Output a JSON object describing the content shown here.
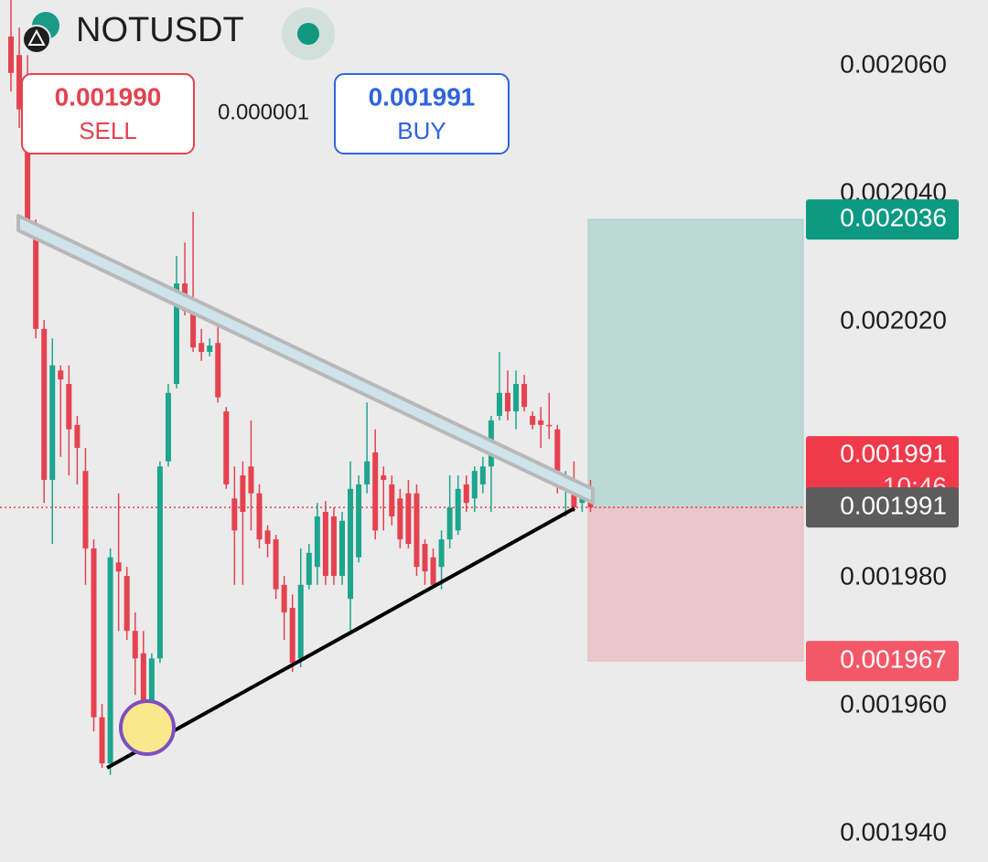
{
  "chart_data": {
    "type": "candlestick",
    "title": "NOTUSDT",
    "trade_panel": {
      "sell_price": "0.001990",
      "sell_label": "SELL",
      "spread": "0.000001",
      "buy_price": "0.001991",
      "buy_label": "BUY"
    },
    "ylim": [
      0.0019363,
      0.0020703
    ],
    "yticks": [
      {
        "value": 0.00194,
        "label": "0.001940"
      },
      {
        "value": 0.00196,
        "label": "0.001960"
      },
      {
        "value": 0.00198,
        "label": "0.001980"
      },
      {
        "value": 0.00202,
        "label": "0.002020"
      },
      {
        "value": 0.00204,
        "label": "0.002040"
      },
      {
        "value": 0.00206,
        "label": "0.002060"
      }
    ],
    "up_color": "#1ea58e",
    "down_color": "#e5424f",
    "candles": {
      "open": [
        0.0020646,
        0.0020617,
        0.0020574,
        0.0020346,
        0.0020189,
        0.0019953,
        0.0020124,
        0.0020103,
        0.0020039,
        0.0019967,
        0.0019846,
        0.0019582,
        0.001951,
        0.0019824,
        0.0019803,
        0.0019717,
        0.0019682,
        0.0019589,
        0.0019674,
        0.0019982,
        0.0020103,
        0.002026,
        0.0020232,
        0.0020167,
        0.0020153,
        0.0020167,
        0.002006,
        0.0019924,
        0.001996,
        0.0019974,
        0.0019932,
        0.0019874,
        0.001986,
        0.0019789,
        0.0019753,
        0.0019674,
        0.0019789,
        0.0019817,
        0.0019903,
        0.0019896,
        0.0019803,
        0.0019767,
        0.0019832,
        0.0019946,
        0.0019996,
        0.001996,
        0.0019946,
        0.0019924,
        0.0019932,
        0.0019932,
        0.0019853,
        0.0019832,
        0.0019817,
        0.001986,
        0.0019874,
        0.0019946,
        0.0019924,
        0.0019946,
        0.0019974,
        0.0020053,
        0.0020089,
        0.002006,
        0.0020103,
        0.0020053,
        0.0020046,
        0.0020039,
        0.0020032,
        0.0019946,
        0.0019946,
        0.0019917,
        0.0019932
      ],
      "high": [
        0.0020703,
        0.002066,
        0.0020617,
        0.002036,
        0.0020203,
        0.0020174,
        0.0020132,
        0.0020132,
        0.0020053,
        0.0020003,
        0.001986,
        0.0019603,
        0.0019846,
        0.0019932,
        0.0019817,
        0.0019746,
        0.0019717,
        0.0019682,
        0.0019982,
        0.0020103,
        0.0020303,
        0.0020324,
        0.0020372,
        0.0020189,
        0.0020174,
        0.0020217,
        0.0020067,
        0.0019974,
        0.0019982,
        0.0020046,
        0.0019946,
        0.0019882,
        0.0019867,
        0.0019803,
        0.0019774,
        0.0019846,
        0.0019853,
        0.0019917,
        0.001992,
        0.001991,
        0.0019903,
        0.0019982,
        0.001996,
        0.0020074,
        0.0020032,
        0.0019974,
        0.001996,
        0.0019939,
        0.0019953,
        0.0019946,
        0.001986,
        0.0019846,
        0.0019874,
        0.001996,
        0.001996,
        0.001996,
        0.0019974,
        0.0019989,
        0.0020053,
        0.0020153,
        0.0020124,
        0.0020124,
        0.0020117,
        0.002006,
        0.0020067,
        0.0020089,
        0.0020039,
        0.0019967,
        0.0019982,
        0.0019932,
        0.0019953
      ],
      "low": [
        0.002056,
        0.0020503,
        0.0020346,
        0.0020174,
        0.0019917,
        0.0019853,
        0.0019989,
        0.001996,
        0.0019946,
        0.0019789,
        0.001956,
        0.0019503,
        0.0019492,
        0.0019717,
        0.0019703,
        0.0019617,
        0.001956,
        0.0019582,
        0.0019667,
        0.0019974,
        0.0020096,
        0.002021,
        0.0020153,
        0.0020139,
        0.0020146,
        0.0020074,
        0.0019939,
        0.0019789,
        0.0019789,
        0.0019874,
        0.0019846,
        0.0019832,
        0.0019767,
        0.0019703,
        0.0019653,
        0.001966,
        0.0019782,
        0.0019789,
        0.0019789,
        0.0019789,
        0.0019789,
        0.0019717,
        0.0019824,
        0.0019932,
        0.001986,
        0.0019874,
        0.0019882,
        0.0019846,
        0.0019846,
        0.0019803,
        0.0019789,
        0.0019786,
        0.0019782,
        0.0019846,
        0.0019867,
        0.0019903,
        0.0019903,
        0.0019932,
        0.0019903,
        0.0020046,
        0.0020046,
        0.0020032,
        0.002006,
        0.0020032,
        0.0020003,
        0.0020017,
        0.0019932,
        0.0019896,
        0.0019903,
        0.0019903,
        0.0019903
      ],
      "close": [
        0.0020589,
        0.0020532,
        0.002036,
        0.0020189,
        0.0019953,
        0.0020132,
        0.002011,
        0.0020032,
        0.0020003,
        0.0019846,
        0.0019582,
        0.001951,
        0.0019832,
        0.001981,
        0.0019717,
        0.0019674,
        0.0019574,
        0.0019674,
        0.0019974,
        0.0020089,
        0.002026,
        0.0020217,
        0.002016,
        0.0020153,
        0.0020163,
        0.0020082,
        0.0019946,
        0.0019874,
        0.0019903,
        0.0019932,
        0.001986,
        0.0019853,
        0.0019782,
        0.0019746,
        0.0019667,
        0.0019789,
        0.0019839,
        0.0019896,
        0.0019803,
        0.0019803,
        0.0019889,
        0.0019939,
        0.0019946,
        0.0019982,
        0.0019874,
        0.0019953,
        0.0019896,
        0.001986,
        0.0019853,
        0.0019817,
        0.001981,
        0.0019789,
        0.001986,
        0.001991,
        0.0019939,
        0.0019917,
        0.0019967,
        0.0019974,
        0.0020046,
        0.0020089,
        0.002006,
        0.0020103,
        0.0020067,
        0.0020039,
        0.0020039,
        0.0020038,
        0.0019967,
        0.001996,
        0.001991,
        0.0019924,
        0.001991
      ]
    },
    "position": {
      "target": 0.002036,
      "entry": 0.001991,
      "stop": 0.001967
    },
    "last_price": 0.001991,
    "countdown": "10:46",
    "ask_tag": 0.001991
  }
}
